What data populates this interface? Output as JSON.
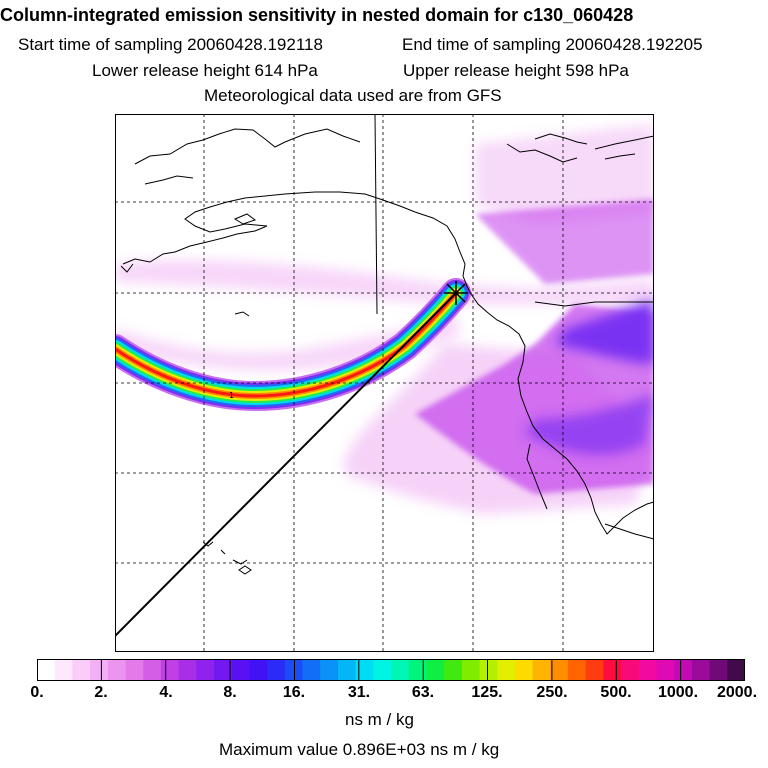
{
  "header": {
    "title": "Column-integrated emission sensitivity in nested domain for c130_060428",
    "start_time": "Start time of sampling 20060428.192118",
    "end_time": "End time of sampling 20060428.192205",
    "lower_height": "Lower release height  614 hPa",
    "upper_height": "Upper release height  598 hPa",
    "met_data": "Meteorological data used are from GFS"
  },
  "colorbar": {
    "ticks": [
      "0.",
      "2.",
      "4.",
      "8.",
      "16.",
      "31.",
      "63.",
      "125.",
      "250.",
      "500.",
      "1000.",
      "2000."
    ],
    "units": "ns m / kg",
    "colors": [
      "#ffffff",
      "#fde8fd",
      "#f9ccf9",
      "#f3b0f4",
      "#ec95ee",
      "#e27ae9",
      "#d45ee6",
      "#c040e6",
      "#a82ee8",
      "#8f22ec",
      "#7318f0",
      "#5a10f4",
      "#4112f6",
      "#2a2bf6",
      "#1c4cf6",
      "#126ef6",
      "#0a92f6",
      "#04b6f6",
      "#00dcf4",
      "#00f4e4",
      "#00f6b4",
      "#00f47c",
      "#10ee44",
      "#40ea10",
      "#80ec00",
      "#b4ee00",
      "#e2ee00",
      "#fcdc00",
      "#feb400",
      "#fe8e00",
      "#fe6400",
      "#fe3c10",
      "#fe0c40",
      "#fa0a78",
      "#f20aa0",
      "#e00ab4",
      "#c40ab4",
      "#9c0a9c",
      "#700a78",
      "#420a4a"
    ]
  },
  "max_value": "Maximum value  0.896E+03 ns m / kg",
  "colors": {
    "plume_low": "#f0b4f4",
    "plume_mid": "#c64cec",
    "plume_high": "#7a30f2",
    "coast": "#000000"
  }
}
